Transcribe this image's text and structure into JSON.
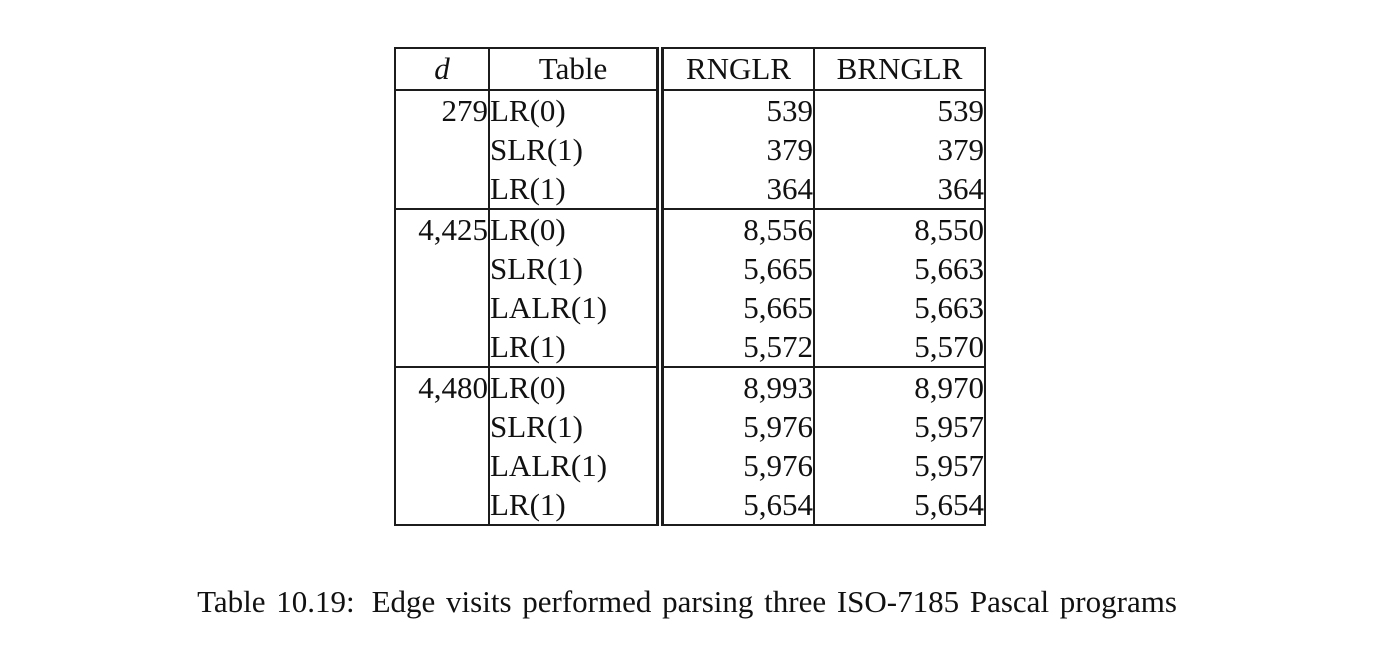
{
  "page": {
    "background": "#ffffff",
    "text_color": "#111111",
    "rule_color": "#1c1c1c"
  },
  "table": {
    "headers": {
      "d": "d",
      "table": "Table",
      "rnglr": "RNGLR",
      "brnglr": "BRNGLR"
    },
    "rows": [
      {
        "d": "279",
        "table": "LR(0)",
        "rnglr": "539",
        "brnglr": "539"
      },
      {
        "d": "",
        "table": "SLR(1)",
        "rnglr": "379",
        "brnglr": "379"
      },
      {
        "d": "",
        "table": "LR(1)",
        "rnglr": "364",
        "brnglr": "364"
      },
      {
        "d": "4,425",
        "table": "LR(0)",
        "rnglr": "8,556",
        "brnglr": "8,550"
      },
      {
        "d": "",
        "table": "SLR(1)",
        "rnglr": "5,665",
        "brnglr": "5,663"
      },
      {
        "d": "",
        "table": "LALR(1)",
        "rnglr": "5,665",
        "brnglr": "5,663"
      },
      {
        "d": "",
        "table": "LR(1)",
        "rnglr": "5,572",
        "brnglr": "5,570"
      },
      {
        "d": "4,480",
        "table": "LR(0)",
        "rnglr": "8,993",
        "brnglr": "8,970"
      },
      {
        "d": "",
        "table": "SLR(1)",
        "rnglr": "5,976",
        "brnglr": "5,957"
      },
      {
        "d": "",
        "table": "LALR(1)",
        "rnglr": "5,976",
        "brnglr": "5,957"
      },
      {
        "d": "",
        "table": "LR(1)",
        "rnglr": "5,654",
        "brnglr": "5,654"
      }
    ]
  },
  "caption": {
    "label": "Table 10.19:",
    "text": "Edge visits performed parsing three ISO-7185 Pascal programs"
  }
}
